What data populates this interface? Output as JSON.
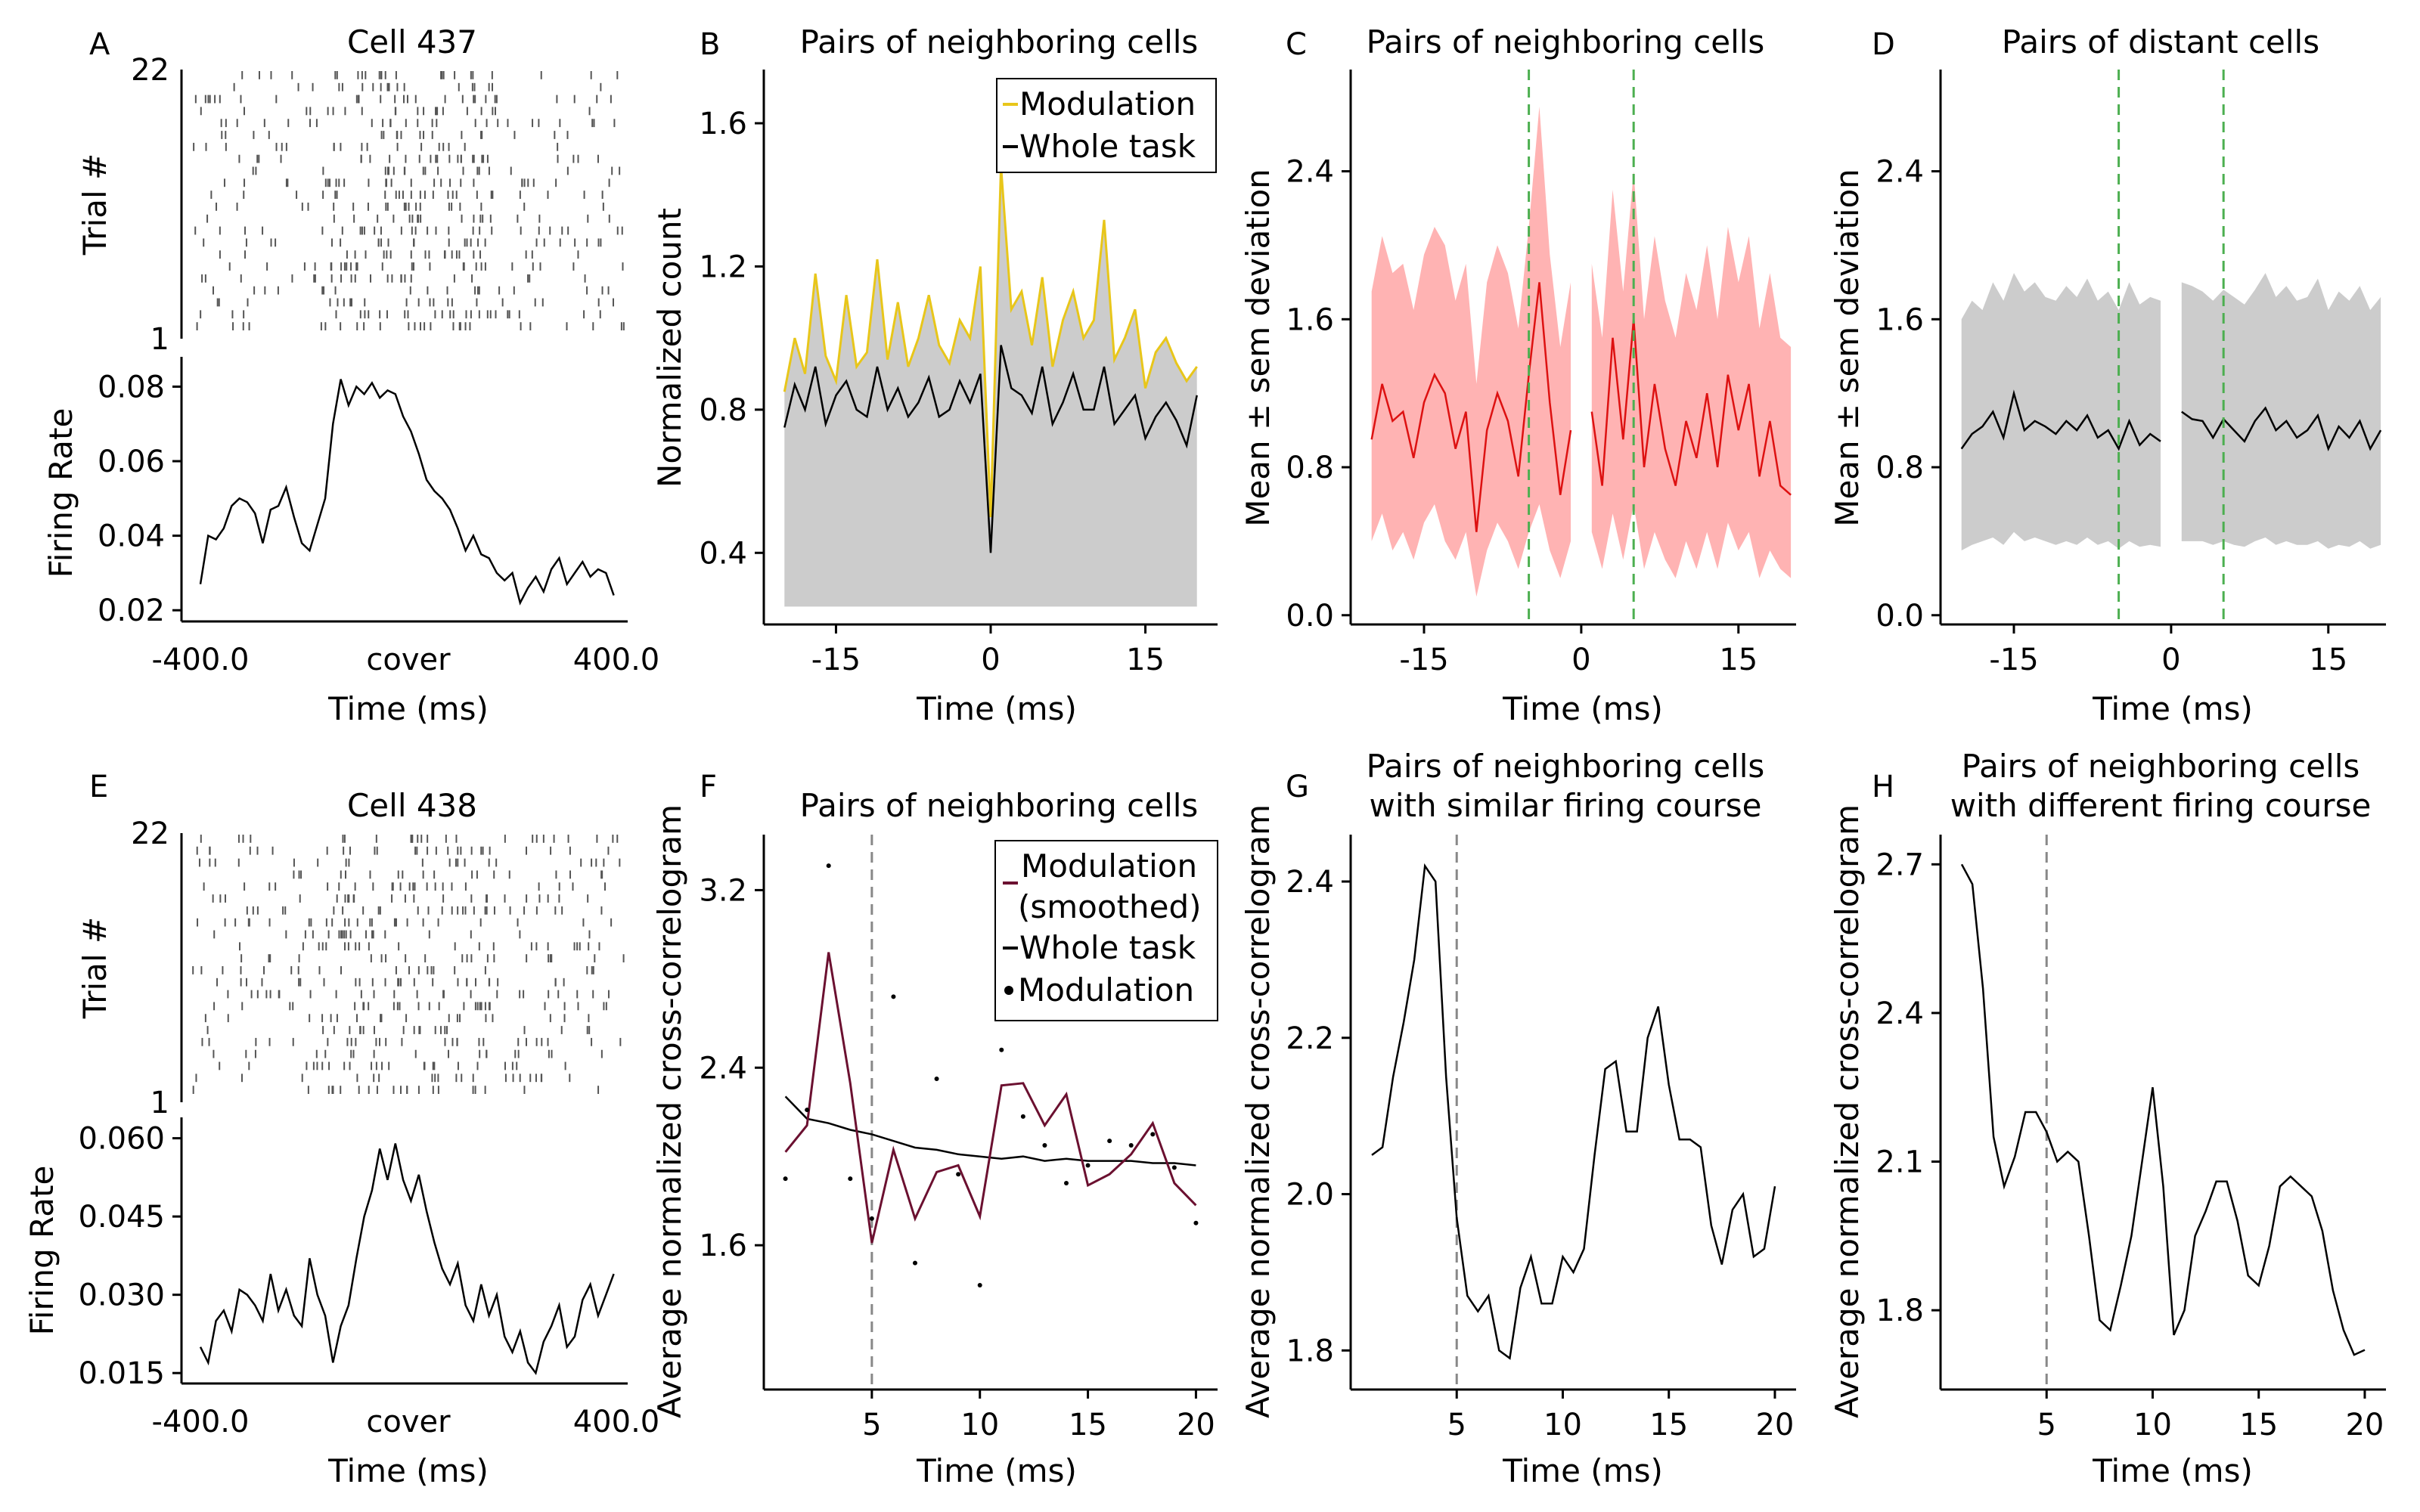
{
  "colors": {
    "black": "#000000",
    "gray_fill": "#cccccc",
    "yellow": "#e8c61a",
    "red_line": "#dd1111",
    "red_fill": "#ffb3b3",
    "maroon": "#6b1030",
    "green_dash": "#4caf50",
    "gray_dash": "#888888"
  },
  "panels": {
    "A": {
      "letter": "A",
      "title": "Cell 437",
      "raster_ylabel": "Trial #",
      "raster_yticks": [
        "22",
        "1"
      ],
      "rate_ylabel": "Firing Rate",
      "xlabel": "Time (ms)",
      "xticks": [
        "-400.0",
        "cover",
        "400.0"
      ]
    },
    "B": {
      "letter": "B",
      "title": "Pairs of neighboring cells",
      "ylabel": "Normalized count",
      "xlabel": "Time (ms)",
      "legend": [
        "Modulation",
        "Whole task"
      ]
    },
    "C": {
      "letter": "C",
      "title": "Pairs of neighboring cells",
      "ylabel": "Mean ± sem deviation",
      "xlabel": "Time (ms)"
    },
    "D": {
      "letter": "D",
      "title": "Pairs of distant cells",
      "ylabel": "Mean ± sem deviation",
      "xlabel": "Time (ms)"
    },
    "E": {
      "letter": "E",
      "title": "Cell 438",
      "raster_ylabel": "Trial #",
      "raster_yticks": [
        "22",
        "1"
      ],
      "rate_ylabel": "Firing Rate",
      "xlabel": "Time (ms)",
      "xticks": [
        "-400.0",
        "cover",
        "400.0"
      ]
    },
    "F": {
      "letter": "F",
      "title": "Pairs of neighboring cells",
      "ylabel": "Average normalized cross-correlogram",
      "xlabel": "Time (ms)",
      "legend": [
        "Modulation",
        "(smoothed)",
        "Whole task",
        "Modulation"
      ]
    },
    "G": {
      "letter": "G",
      "title_line1": "Pairs of neighboring cells",
      "title_line2": "with similar firing course",
      "ylabel": "Average normalized cross-correlogram",
      "xlabel": "Time (ms)"
    },
    "H": {
      "letter": "H",
      "title_line1": "Pairs of neighboring cells",
      "title_line2": "with different firing course",
      "ylabel": "Average normalized cross-correlogram",
      "xlabel": "Time (ms)"
    }
  },
  "chart_data": [
    {
      "panel": "A",
      "type": "line",
      "x": [
        -400,
        -385,
        -370,
        -355,
        -340,
        -325,
        -310,
        -295,
        -280,
        -265,
        -250,
        -235,
        -220,
        -205,
        -190,
        -175,
        -160,
        -145,
        -130,
        -115,
        -100,
        -85,
        -70,
        -55,
        -40,
        -25,
        -10,
        5,
        20,
        35,
        50,
        65,
        80,
        95,
        110,
        125,
        140,
        155,
        170,
        185,
        200,
        215,
        230,
        245,
        260,
        275,
        290,
        305,
        320,
        335,
        350,
        365,
        380,
        395
      ],
      "y": [
        0.027,
        0.04,
        0.039,
        0.042,
        0.048,
        0.05,
        0.049,
        0.046,
        0.038,
        0.047,
        0.048,
        0.053,
        0.045,
        0.038,
        0.036,
        0.043,
        0.05,
        0.07,
        0.082,
        0.075,
        0.08,
        0.078,
        0.081,
        0.077,
        0.079,
        0.078,
        0.072,
        0.068,
        0.062,
        0.055,
        0.052,
        0.05,
        0.047,
        0.042,
        0.036,
        0.04,
        0.035,
        0.034,
        0.03,
        0.028,
        0.03,
        0.022,
        0.026,
        0.029,
        0.025,
        0.031,
        0.034,
        0.027,
        0.03,
        0.033,
        0.029,
        0.031,
        0.03,
        0.024
      ],
      "yticks": [
        0.02,
        0.04,
        0.06,
        0.08
      ],
      "ylim": [
        0.017,
        0.088
      ],
      "xlim": [
        -400,
        400
      ]
    },
    {
      "panel": "B",
      "type": "line",
      "x": [
        -20,
        -19,
        -18,
        -17,
        -16,
        -15,
        -14,
        -13,
        -12,
        -11,
        -10,
        -9,
        -8,
        -7,
        -6,
        -5,
        -4,
        -3,
        -2,
        -1,
        0,
        1,
        2,
        3,
        4,
        5,
        6,
        7,
        8,
        9,
        10,
        11,
        12,
        13,
        14,
        15,
        16,
        17,
        18,
        19,
        20
      ],
      "series": [
        {
          "name": "Modulation",
          "values": [
            0.85,
            1.0,
            0.9,
            1.18,
            0.95,
            0.88,
            1.12,
            0.92,
            0.96,
            1.22,
            0.94,
            1.1,
            0.92,
            1.0,
            1.12,
            0.98,
            0.93,
            1.05,
            1.0,
            1.2,
            0.5,
            1.48,
            1.08,
            1.13,
            0.98,
            1.17,
            0.92,
            1.05,
            1.13,
            1.0,
            1.05,
            1.33,
            0.94,
            1.0,
            1.08,
            0.86,
            0.96,
            1.0,
            0.93,
            0.88,
            0.92
          ]
        },
        {
          "name": "Whole task",
          "values": [
            0.75,
            0.87,
            0.8,
            0.92,
            0.76,
            0.84,
            0.88,
            0.8,
            0.78,
            0.92,
            0.8,
            0.86,
            0.78,
            0.82,
            0.89,
            0.78,
            0.8,
            0.88,
            0.82,
            0.9,
            0.4,
            0.98,
            0.86,
            0.84,
            0.79,
            0.92,
            0.76,
            0.82,
            0.9,
            0.8,
            0.8,
            0.92,
            0.76,
            0.8,
            0.84,
            0.72,
            0.78,
            0.82,
            0.77,
            0.7,
            0.84
          ]
        }
      ],
      "yticks": [
        0.4,
        0.8,
        1.2,
        1.6
      ],
      "xticks": [
        -15,
        0,
        15
      ],
      "ylim": [
        0.2,
        1.75
      ],
      "xlim": [
        -22,
        22
      ]
    },
    {
      "panel": "C",
      "type": "area",
      "x": [
        -20,
        -19,
        -18,
        -17,
        -16,
        -15,
        -14,
        -13,
        -12,
        -11,
        -10,
        -9,
        -8,
        -7,
        -6,
        -5,
        -4,
        -3,
        -2,
        -1,
        0,
        1,
        2,
        3,
        4,
        5,
        6,
        7,
        8,
        9,
        10,
        11,
        12,
        13,
        14,
        15,
        16,
        17,
        18,
        19,
        20
      ],
      "series": [
        {
          "name": "mean",
          "values": [
            0.95,
            1.25,
            1.05,
            1.1,
            0.85,
            1.15,
            1.3,
            1.2,
            0.9,
            1.1,
            0.45,
            1.0,
            1.2,
            1.05,
            0.75,
            1.3,
            1.8,
            1.15,
            0.65,
            1.0,
            null,
            1.1,
            0.7,
            1.5,
            0.95,
            1.6,
            0.8,
            1.25,
            0.9,
            0.7,
            1.05,
            0.85,
            1.2,
            0.8,
            1.3,
            1.0,
            1.25,
            0.75,
            1.05,
            0.7,
            0.65
          ]
        },
        {
          "name": "upper",
          "values": [
            1.75,
            2.05,
            1.85,
            1.9,
            1.65,
            1.95,
            2.1,
            2.0,
            1.7,
            1.9,
            1.25,
            1.8,
            2.0,
            1.85,
            1.55,
            2.1,
            2.75,
            1.95,
            1.45,
            1.8,
            null,
            1.9,
            1.5,
            2.3,
            1.75,
            2.4,
            1.6,
            2.05,
            1.7,
            1.5,
            1.85,
            1.65,
            2.0,
            1.6,
            2.1,
            1.8,
            2.05,
            1.55,
            1.85,
            1.5,
            1.45
          ]
        },
        {
          "name": "lower",
          "values": [
            0.4,
            0.55,
            0.35,
            0.45,
            0.3,
            0.5,
            0.6,
            0.4,
            0.3,
            0.45,
            0.1,
            0.35,
            0.5,
            0.4,
            0.25,
            0.45,
            0.6,
            0.35,
            0.2,
            0.4,
            null,
            0.45,
            0.25,
            0.55,
            0.3,
            0.6,
            0.25,
            0.45,
            0.3,
            0.2,
            0.4,
            0.25,
            0.45,
            0.25,
            0.5,
            0.35,
            0.45,
            0.2,
            0.35,
            0.25,
            0.2
          ]
        }
      ],
      "yticks": [
        0.0,
        0.8,
        1.6,
        2.4
      ],
      "xticks": [
        -15,
        0,
        15
      ],
      "vlines": [
        -5,
        5
      ],
      "ylim": [
        -0.05,
        2.95
      ],
      "xlim": [
        -22,
        20.5
      ]
    },
    {
      "panel": "D",
      "type": "area",
      "x": [
        -20,
        -19,
        -18,
        -17,
        -16,
        -15,
        -14,
        -13,
        -12,
        -11,
        -10,
        -9,
        -8,
        -7,
        -6,
        -5,
        -4,
        -3,
        -2,
        -1,
        0,
        1,
        2,
        3,
        4,
        5,
        6,
        7,
        8,
        9,
        10,
        11,
        12,
        13,
        14,
        15,
        16,
        17,
        18,
        19,
        20
      ],
      "series": [
        {
          "name": "mean",
          "values": [
            0.9,
            0.98,
            1.02,
            1.1,
            0.96,
            1.2,
            1.0,
            1.05,
            1.02,
            0.98,
            1.05,
            1.0,
            1.08,
            0.96,
            1.0,
            0.9,
            1.05,
            0.92,
            0.98,
            0.94,
            null,
            1.1,
            1.06,
            1.05,
            0.96,
            1.06,
            1.0,
            0.94,
            1.05,
            1.12,
            1.0,
            1.05,
            0.96,
            1.0,
            1.08,
            0.9,
            1.02,
            0.96,
            1.05,
            0.9,
            1.0
          ]
        },
        {
          "name": "upper",
          "values": [
            1.6,
            1.7,
            1.65,
            1.8,
            1.7,
            1.85,
            1.75,
            1.8,
            1.72,
            1.7,
            1.78,
            1.72,
            1.82,
            1.7,
            1.75,
            1.65,
            1.8,
            1.68,
            1.72,
            1.7,
            null,
            1.8,
            1.78,
            1.75,
            1.7,
            1.76,
            1.72,
            1.68,
            1.76,
            1.85,
            1.72,
            1.78,
            1.7,
            1.72,
            1.82,
            1.65,
            1.75,
            1.7,
            1.78,
            1.65,
            1.72
          ]
        },
        {
          "name": "lower",
          "values": [
            0.35,
            0.38,
            0.4,
            0.42,
            0.38,
            0.45,
            0.4,
            0.42,
            0.4,
            0.38,
            0.4,
            0.38,
            0.42,
            0.38,
            0.4,
            0.36,
            0.4,
            0.37,
            0.38,
            0.37,
            null,
            0.4,
            0.4,
            0.4,
            0.38,
            0.4,
            0.38,
            0.37,
            0.4,
            0.42,
            0.38,
            0.4,
            0.38,
            0.38,
            0.4,
            0.36,
            0.38,
            0.37,
            0.4,
            0.36,
            0.38
          ]
        }
      ],
      "yticks": [
        0.0,
        0.8,
        1.6,
        2.4
      ],
      "xticks": [
        -15,
        0,
        15
      ],
      "vlines": [
        -5,
        5
      ],
      "ylim": [
        -0.05,
        2.95
      ],
      "xlim": [
        -22,
        20.5
      ]
    },
    {
      "panel": "E",
      "type": "line",
      "x": [
        -400,
        -385,
        -370,
        -355,
        -340,
        -325,
        -310,
        -295,
        -280,
        -265,
        -250,
        -235,
        -220,
        -205,
        -190,
        -175,
        -160,
        -145,
        -130,
        -115,
        -100,
        -85,
        -70,
        -55,
        -40,
        -25,
        -10,
        5,
        20,
        35,
        50,
        65,
        80,
        95,
        110,
        125,
        140,
        155,
        170,
        185,
        200,
        215,
        230,
        245,
        260,
        275,
        290,
        305,
        320,
        335,
        350,
        365,
        380,
        395
      ],
      "y": [
        0.02,
        0.017,
        0.025,
        0.027,
        0.023,
        0.031,
        0.03,
        0.028,
        0.025,
        0.034,
        0.027,
        0.031,
        0.026,
        0.024,
        0.037,
        0.03,
        0.026,
        0.017,
        0.024,
        0.028,
        0.037,
        0.045,
        0.05,
        0.058,
        0.052,
        0.059,
        0.052,
        0.048,
        0.053,
        0.046,
        0.04,
        0.035,
        0.032,
        0.036,
        0.028,
        0.025,
        0.032,
        0.026,
        0.03,
        0.022,
        0.019,
        0.023,
        0.017,
        0.015,
        0.021,
        0.024,
        0.028,
        0.02,
        0.022,
        0.029,
        0.032,
        0.026,
        0.03,
        0.034
      ],
      "yticks": [
        0.015,
        0.03,
        0.045,
        0.06
      ],
      "ylim": [
        0.013,
        0.064
      ],
      "xlim": [
        -400,
        400
      ]
    },
    {
      "panel": "F",
      "type": "line",
      "x": [
        1,
        2,
        3,
        4,
        5,
        6,
        7,
        8,
        9,
        10,
        11,
        12,
        13,
        14,
        15,
        16,
        17,
        18,
        19,
        20
      ],
      "series": [
        {
          "name": "Modulation (smoothed)",
          "values": [
            2.02,
            2.14,
            2.92,
            2.33,
            1.61,
            2.03,
            1.72,
            1.93,
            1.96,
            1.73,
            2.32,
            2.33,
            2.14,
            2.28,
            1.87,
            1.92,
            2.01,
            2.15,
            1.88,
            1.78
          ]
        },
        {
          "name": "Whole task",
          "values": [
            2.27,
            2.17,
            2.15,
            2.12,
            2.1,
            2.07,
            2.04,
            2.03,
            2.01,
            2.0,
            1.99,
            2.0,
            1.98,
            1.99,
            1.98,
            1.98,
            1.98,
            1.97,
            1.97,
            1.96
          ]
        },
        {
          "name": "Modulation",
          "values": [
            1.9,
            2.21,
            3.31,
            1.9,
            1.72,
            2.72,
            1.52,
            2.35,
            1.92,
            1.42,
            2.48,
            2.18,
            2.05,
            1.88,
            1.96,
            2.07,
            2.05,
            2.1,
            1.95,
            1.7
          ]
        }
      ],
      "yticks": [
        1.6,
        2.4,
        3.2
      ],
      "xticks": [
        5,
        10,
        15,
        20
      ],
      "vlines": [
        5
      ],
      "ylim": [
        0.95,
        3.45
      ],
      "xlim": [
        0,
        21
      ]
    },
    {
      "panel": "G",
      "type": "line",
      "x": [
        1,
        1.5,
        2,
        2.5,
        3,
        3.5,
        4,
        4.5,
        5,
        5.5,
        6,
        6.5,
        7,
        7.5,
        8,
        8.5,
        9,
        9.5,
        10,
        10.5,
        11,
        11.5,
        12,
        12.5,
        13,
        13.5,
        14,
        14.5,
        15,
        15.5,
        16,
        16.5,
        17,
        17.5,
        18,
        18.5,
        19,
        19.5,
        20
      ],
      "y": [
        2.05,
        2.06,
        2.15,
        2.22,
        2.3,
        2.42,
        2.4,
        2.15,
        1.97,
        1.87,
        1.85,
        1.87,
        1.8,
        1.79,
        1.88,
        1.92,
        1.86,
        1.86,
        1.92,
        1.9,
        1.93,
        2.05,
        2.16,
        2.17,
        2.08,
        2.08,
        2.2,
        2.24,
        2.14,
        2.07,
        2.07,
        2.06,
        1.96,
        1.91,
        1.98,
        2.0,
        1.92,
        1.93,
        2.01
      ],
      "yticks": [
        1.8,
        2.0,
        2.2,
        2.4
      ],
      "xticks": [
        5,
        10,
        15,
        20
      ],
      "vlines": [
        5
      ],
      "ylim": [
        1.75,
        2.46
      ],
      "xlim": [
        0,
        21
      ]
    },
    {
      "panel": "H",
      "type": "line",
      "x": [
        1,
        1.5,
        2,
        2.5,
        3,
        3.5,
        4,
        4.5,
        5,
        5.5,
        6,
        6.5,
        7,
        7.5,
        8,
        8.5,
        9,
        9.5,
        10,
        10.5,
        11,
        11.5,
        12,
        12.5,
        13,
        13.5,
        14,
        14.5,
        15,
        15.5,
        16,
        16.5,
        17,
        17.5,
        18,
        18.5,
        19,
        19.5,
        20
      ],
      "y": [
        2.7,
        2.66,
        2.45,
        2.15,
        2.05,
        2.11,
        2.2,
        2.2,
        2.16,
        2.1,
        2.12,
        2.1,
        1.95,
        1.78,
        1.76,
        1.85,
        1.95,
        2.1,
        2.25,
        2.05,
        1.75,
        1.8,
        1.95,
        2.0,
        2.06,
        2.06,
        1.98,
        1.87,
        1.85,
        1.93,
        2.05,
        2.07,
        2.05,
        2.03,
        1.96,
        1.84,
        1.76,
        1.71,
        1.72
      ],
      "yticks": [
        1.8,
        2.1,
        2.4,
        2.7
      ],
      "xticks": [
        5,
        10,
        15,
        20
      ],
      "vlines": [
        5
      ],
      "ylim": [
        1.64,
        2.76
      ],
      "xlim": [
        0,
        21
      ]
    }
  ]
}
